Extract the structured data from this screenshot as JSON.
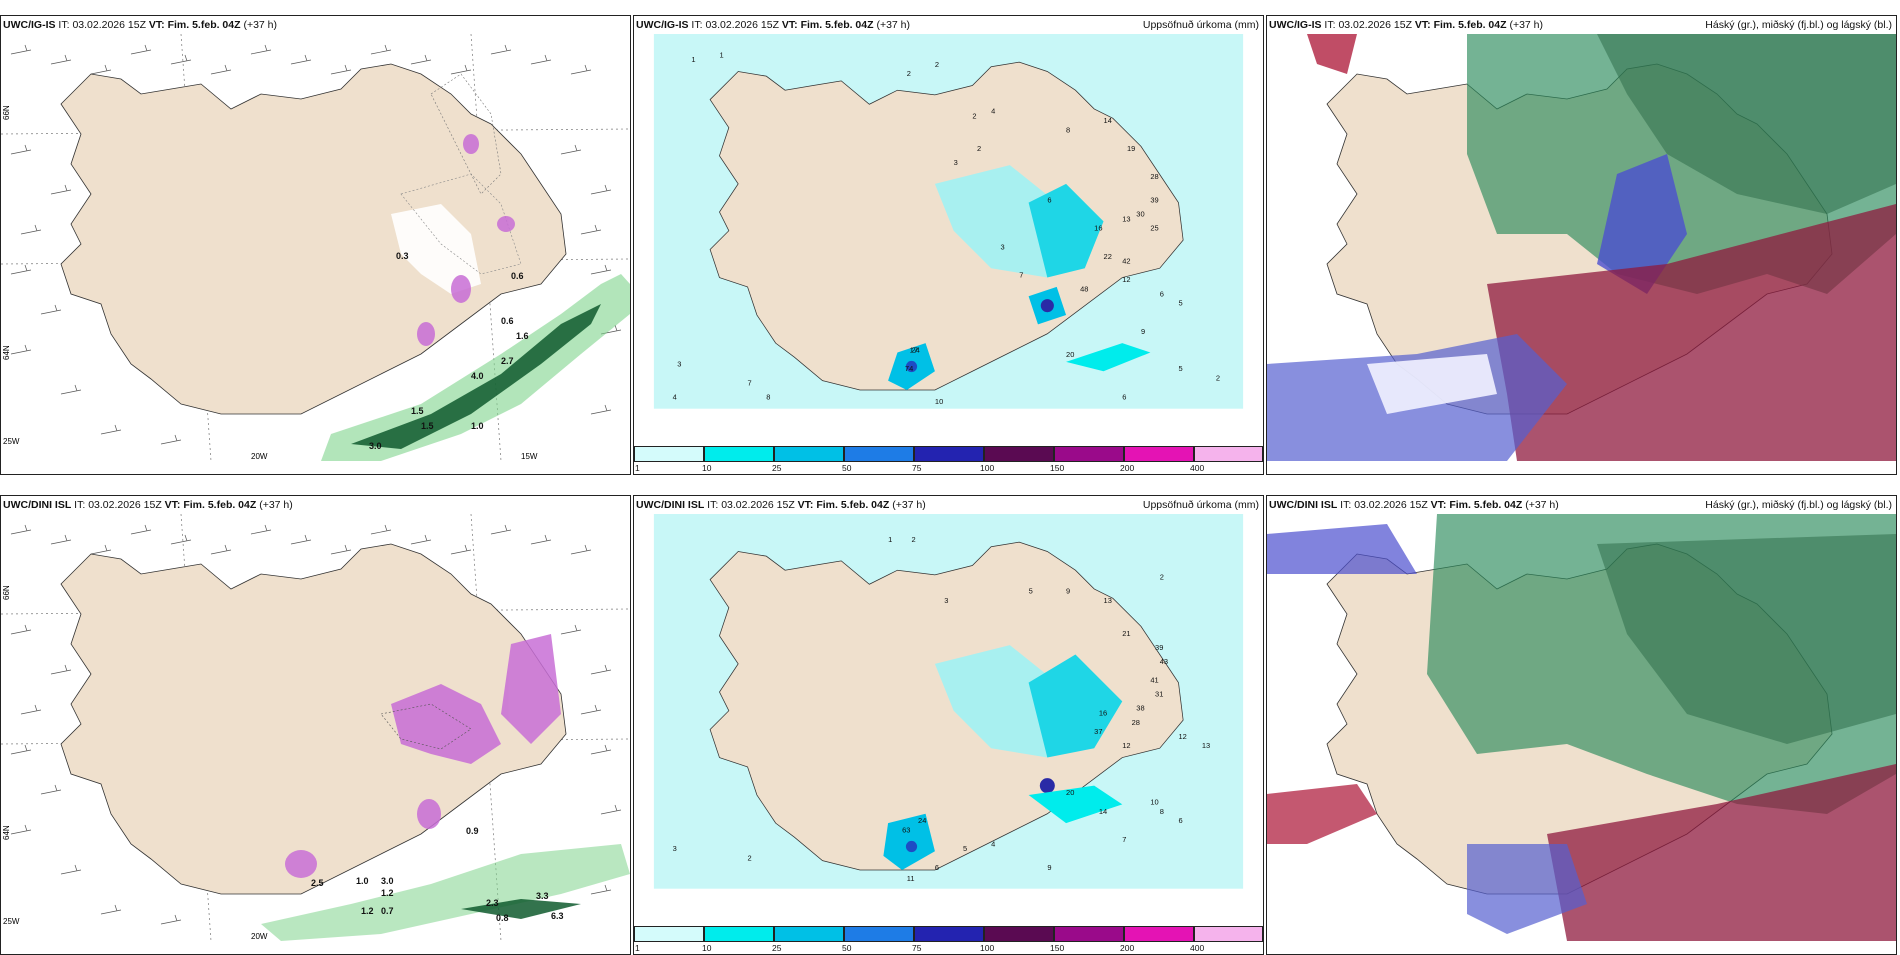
{
  "rows": [
    {
      "model": "UWC/IG-IS",
      "it_label": "IT:",
      "it_value": "03.02.2026 15Z",
      "vt_label": "VT:",
      "vt_value": "Fim. 5.feb. 04Z",
      "lead": "(+37 h)",
      "mid_right": "Uppsöfnuð úrkoma (mm)",
      "right_right": "Háský (gr.), miðský (fj.bl.) og lágský (bl.)",
      "left_axis": {
        "lat66": "66N",
        "lat64a": "64N",
        "lat64b": "64N",
        "lon20": "20W",
        "lon15": "15W",
        "lon25": "25W"
      },
      "snow_values": [
        "0.6",
        "0.3",
        "0.6",
        "4.0",
        "1.5",
        "1.0",
        "1.6",
        "3.0",
        "2.7",
        "1.5"
      ],
      "precip_values": [
        "1",
        "1",
        "2",
        "2",
        "3",
        "2",
        "2",
        "4",
        "6",
        "8",
        "14",
        "19",
        "28",
        "39",
        "30",
        "25",
        "13",
        "16",
        "22",
        "42",
        "12",
        "48",
        "6",
        "5",
        "7",
        "3",
        "9",
        "20",
        "17",
        "74",
        "10",
        "8",
        "7",
        "6",
        "5",
        "4",
        "3",
        "2",
        "24"
      ]
    },
    {
      "model": "UWC/DINI ISL",
      "it_label": "IT:",
      "it_value": "03.02.2026 15Z",
      "vt_label": "VT:",
      "vt_value": "Fim. 5.feb. 04Z",
      "lead": "(+37 h)",
      "mid_right": "Uppsöfnuð úrkoma (mm)",
      "right_right": "Háský (gr.), miðský (fj.bl.) og lágský (bl.)",
      "left_axis": {
        "lat66": "66N",
        "lat64a": "64N",
        "lat64b": "64N",
        "lon20": "20W",
        "lon15": "",
        "lon25": "25W"
      },
      "snow_values": [
        "0.9",
        "2.5",
        "1.0",
        "3.0",
        "1.2",
        "0.7",
        "3.3",
        "0.8",
        "6.3",
        "2.3",
        "1.2"
      ],
      "precip_values": [
        "1",
        "2",
        "2",
        "3",
        "5",
        "9",
        "13",
        "21",
        "39",
        "43",
        "41",
        "31",
        "38",
        "28",
        "12",
        "13",
        "10",
        "8",
        "6",
        "7",
        "16",
        "20",
        "37",
        "12",
        "14",
        "6",
        "5",
        "4",
        "63",
        "24",
        "11",
        "9",
        "2",
        "3"
      ]
    }
  ],
  "colorbar": {
    "ticks": [
      "1",
      "10",
      "25",
      "50",
      "75",
      "100",
      "150",
      "200",
      "400"
    ],
    "colors": [
      "#d4fbfb",
      "#00ecec",
      "#00c0e6",
      "#1e7ce6",
      "#2323b0",
      "#5a0a52",
      "#9a0a8a",
      "#e413b4",
      "#f5b3ec"
    ]
  }
}
